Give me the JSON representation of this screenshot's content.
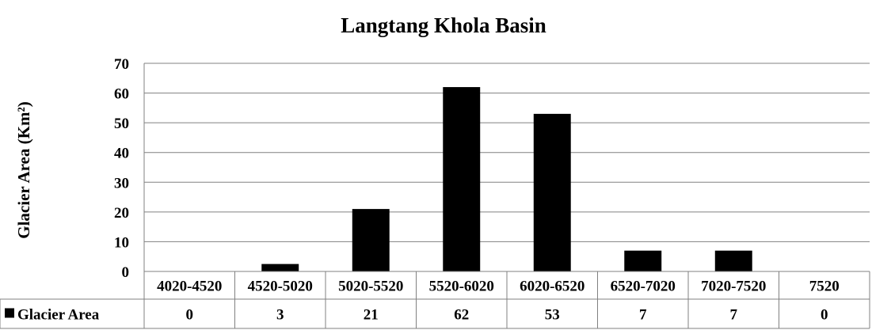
{
  "chart_data": {
    "type": "bar",
    "title": "Langtang Khola Basin",
    "ylabel": "Glacier Area (Km²)",
    "xlabel": "",
    "ylim": [
      0,
      70
    ],
    "yticks": [
      0,
      10,
      20,
      30,
      40,
      50,
      60,
      70
    ],
    "grid": true,
    "categories": [
      "4020-4520",
      "4520-5020",
      "5020-5520",
      "5520-6020",
      "6020-6520",
      "6520-7020",
      "7020-7520",
      "7520"
    ],
    "series": [
      {
        "name": "Glacier Area",
        "color": "#000000",
        "values": [
          0,
          2.5,
          21,
          62,
          53,
          7,
          7,
          0
        ],
        "labels": [
          "0",
          "3",
          "21",
          "62",
          "53",
          "7",
          "7",
          "0"
        ]
      }
    ],
    "legend": "data-table"
  }
}
